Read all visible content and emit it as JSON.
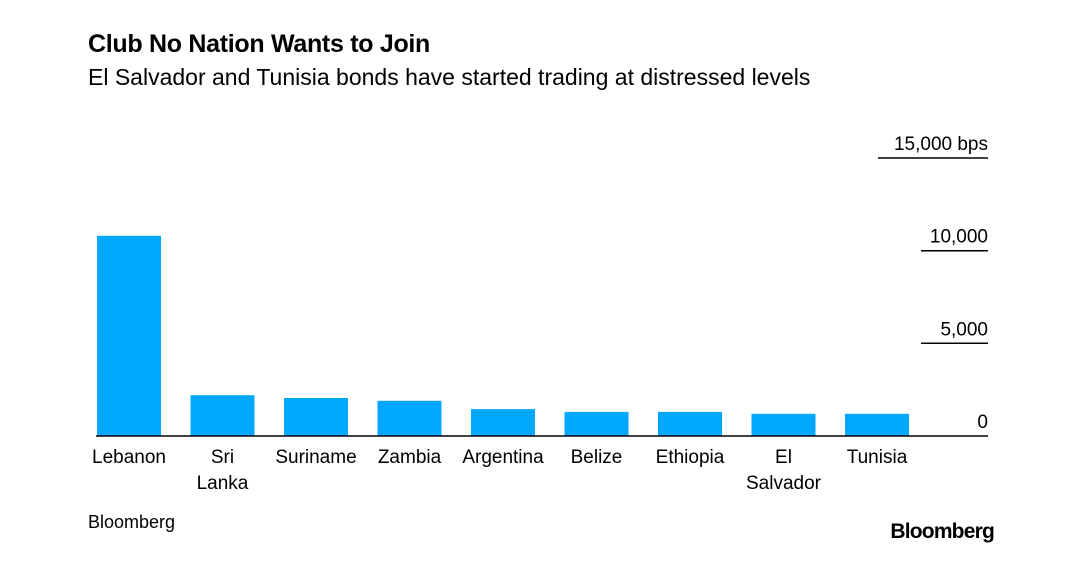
{
  "chart_data": {
    "type": "bar",
    "title": "Club No Nation Wants to Join",
    "subtitle": "El Salvador and Tunisia bonds have started trading at distressed levels",
    "categories": [
      "Lebanon",
      "Sri Lanka",
      "Suriname",
      "Zambia",
      "Argentina",
      "Belize",
      "Ethiopia",
      "El Salvador",
      "Tunisia"
    ],
    "category_lines": [
      [
        "Lebanon"
      ],
      [
        "Sri",
        "Lanka"
      ],
      [
        "Suriname"
      ],
      [
        "Zambia"
      ],
      [
        "Argentina"
      ],
      [
        "Belize"
      ],
      [
        "Ethiopia"
      ],
      [
        "El",
        "Salvador"
      ],
      [
        "Tunisia"
      ]
    ],
    "values": [
      10800,
      2200,
      2050,
      1900,
      1450,
      1300,
      1300,
      1200,
      1200
    ],
    "ylim": [
      0,
      15000
    ],
    "yticks": [
      0,
      5000,
      10000,
      15000
    ],
    "ytick_labels": [
      "0",
      "5,000",
      "10,000",
      "15,000 bps"
    ],
    "y_axis_side": "right",
    "bar_color": "#00a8ff",
    "source": "Bloomberg"
  },
  "branding": {
    "logo_text": "Bloomberg"
  }
}
